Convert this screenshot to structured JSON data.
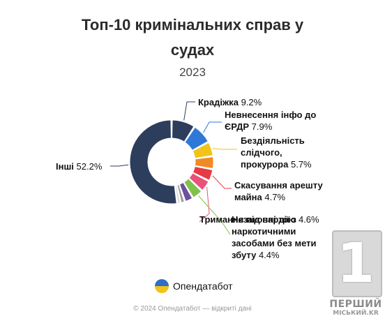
{
  "header": {
    "title_line1": "Топ-10 кримінальних справ у",
    "title_line2": "судах",
    "subtitle": "2023"
  },
  "chart_data": {
    "type": "pie",
    "variant": "donut",
    "title": "Топ-10 кримінальних справ у судах",
    "subtitle": "2023",
    "unit": "%",
    "slices": [
      {
        "label": "Крадіжка",
        "value": 9.2,
        "value_text": "9.2%",
        "color": "#2d3d5c"
      },
      {
        "label": "Невнесення інфо до ЄРДР",
        "value": 7.9,
        "value_text": "7.9%",
        "color": "#2f78d8"
      },
      {
        "label": "Бездіяльність слідчого, прокурора",
        "value": 5.7,
        "value_text": "5.7%",
        "color": "#f2c319"
      },
      {
        "label": "",
        "value": 5.0,
        "value_text": "",
        "color": "#f08a24"
      },
      {
        "label": "Скасування арешту майна",
        "value": 4.7,
        "value_text": "4.7%",
        "color": "#e53b45"
      },
      {
        "label": "Тримання під вартою",
        "value": 4.6,
        "value_text": "4.6%",
        "color": "#e8527a"
      },
      {
        "label": "Незаконні дії з наркотичними засобами без мети збуту",
        "value": 4.4,
        "value_text": "4.4%",
        "color": "#7ec24a"
      },
      {
        "label": "",
        "value": 3.3,
        "value_text": "",
        "color": "#6f4fa0"
      },
      {
        "label": "",
        "value": 1.7,
        "value_text": "",
        "color": "#9a9a9a"
      },
      {
        "label": "",
        "value": 1.3,
        "value_text": "",
        "color": "#cfcfcf"
      },
      {
        "label": "Інші",
        "value": 52.2,
        "value_text": "52.2%",
        "color": "#2d3d5c"
      }
    ]
  },
  "brand": {
    "name": "Опендатабот",
    "logo_icon": "opendatabot-logo-icon"
  },
  "footer": {
    "text": "© 2024 Опендатабот — відкриті дані"
  },
  "watermark": {
    "digit": "1",
    "line1": "ПЕРШИЙ",
    "line2": "МІСЬКИЙ.KR"
  }
}
